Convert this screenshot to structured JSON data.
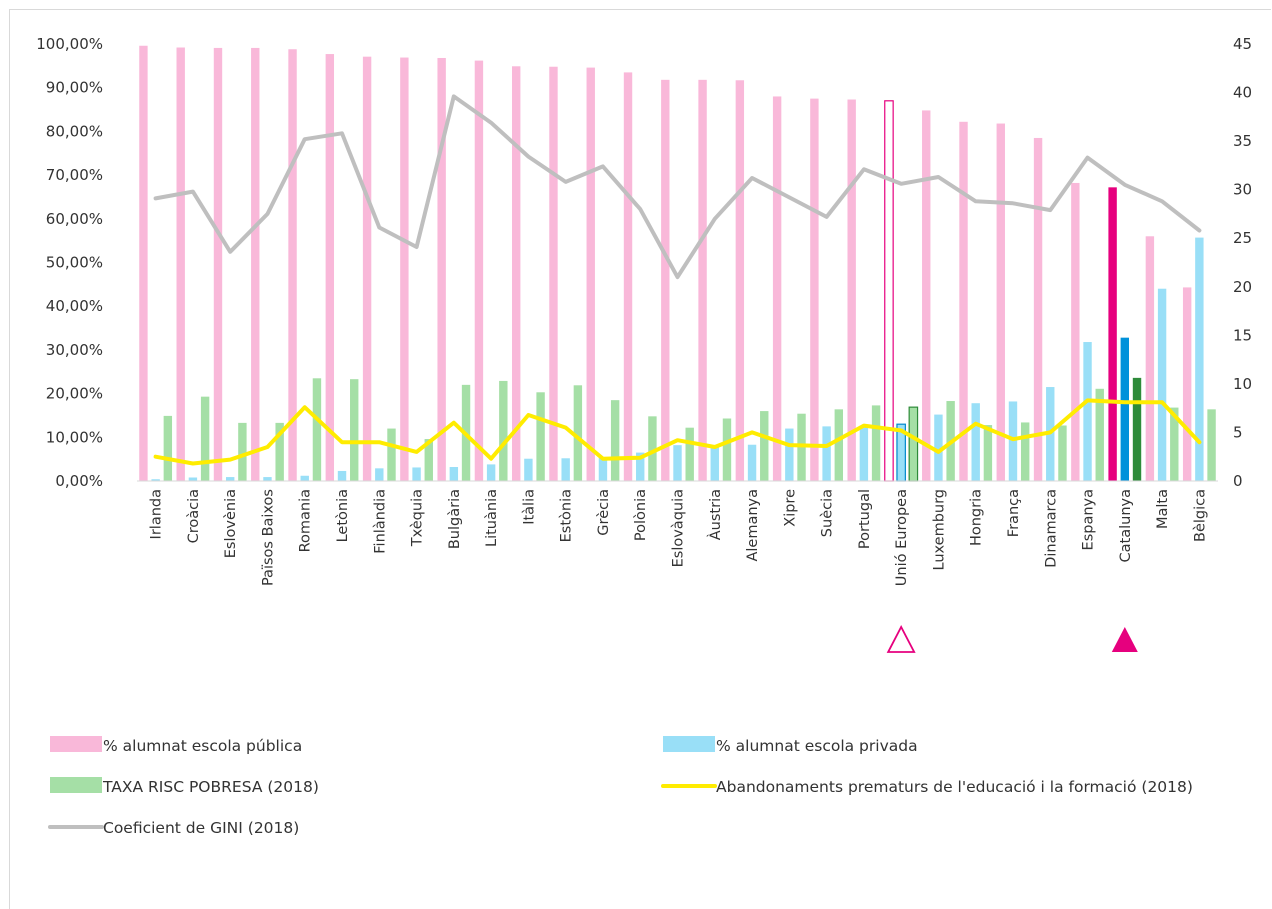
{
  "chart_data": {
    "type": "bar",
    "categories": [
      "Irlanda",
      "Croàcia",
      "Eslovènia",
      "Països Baixos",
      "Romania",
      "Letònia",
      "Finlàndia",
      "Txèquia",
      "Bulgària",
      "Lituània",
      "Itàlia",
      "Estònia",
      "Grècia",
      "Polònia",
      "Eslovàquia",
      "Àustria",
      "Alemanya",
      "Xipre",
      "Suècia",
      "Portugal",
      "Unió Europea",
      "Luxemburg",
      "Hongria",
      "França",
      "Dinamarca",
      "Espanya",
      "Catalunya",
      "Malta",
      "Bèlgica"
    ],
    "series": [
      {
        "name": "% alumnat escola pública",
        "type": "bar",
        "axis": "left",
        "color": "#f9b8d9",
        "values": [
          99.6,
          99.2,
          99.1,
          99.1,
          98.8,
          97.7,
          97.1,
          96.9,
          96.8,
          96.2,
          94.9,
          94.8,
          94.6,
          93.5,
          91.8,
          91.8,
          91.7,
          88.0,
          87.5,
          87.3,
          87.0,
          84.8,
          82.2,
          81.8,
          78.5,
          68.2,
          67.2,
          56.0,
          44.3
        ]
      },
      {
        "name": "% alumnat escola privada",
        "type": "bar",
        "axis": "left",
        "color": "#99dff7",
        "values": [
          0.4,
          0.8,
          0.9,
          0.9,
          1.2,
          2.3,
          2.9,
          3.1,
          3.2,
          3.8,
          5.1,
          5.2,
          5.4,
          6.5,
          8.2,
          8.2,
          8.3,
          12.0,
          12.5,
          12.7,
          13.0,
          15.2,
          17.8,
          18.2,
          21.5,
          31.8,
          32.8,
          44.0,
          55.7
        ]
      },
      {
        "name": "TAXA RISC POBRESA (2018)",
        "type": "bar",
        "axis": "left",
        "color": "#a5dfa6",
        "values": [
          14.9,
          19.3,
          13.3,
          13.3,
          23.5,
          23.3,
          12.0,
          9.6,
          22.0,
          22.9,
          20.3,
          21.9,
          18.5,
          14.8,
          12.2,
          14.3,
          16.0,
          15.4,
          16.4,
          17.3,
          16.9,
          18.3,
          12.8,
          13.4,
          12.7,
          21.1,
          23.6,
          16.8,
          16.4
        ]
      },
      {
        "name": "Abandonaments prematurs de l'educació i la formació (2018)",
        "type": "line",
        "axis": "right",
        "color": "#ffec00",
        "values": [
          2.5,
          1.8,
          2.2,
          3.5,
          7.6,
          4.0,
          4.0,
          3.0,
          6.0,
          2.3,
          6.8,
          5.5,
          2.3,
          2.4,
          4.2,
          3.5,
          5.0,
          3.7,
          3.6,
          5.7,
          5.2,
          3.0,
          5.9,
          4.3,
          5.0,
          8.3,
          8.1,
          8.1,
          4.0
        ]
      },
      {
        "name": "Coeficient de GINI (2018)",
        "type": "line",
        "axis": "right",
        "color": "#bfbfbf",
        "values": [
          29.1,
          29.8,
          23.6,
          27.5,
          35.2,
          35.8,
          26.1,
          24.1,
          39.6,
          36.9,
          33.4,
          30.8,
          32.4,
          28.0,
          21.0,
          27.0,
          31.2,
          29.2,
          27.2,
          32.1,
          30.6,
          31.3,
          28.8,
          28.6,
          27.9,
          33.3,
          30.5,
          28.8,
          25.8
        ]
      }
    ],
    "highlights": [
      {
        "category": "Unió Europea",
        "style": "outlined",
        "marker": "triangle-outline",
        "marker_color": "#e6007e",
        "colors": {
          "public": "#ffffff",
          "public_stroke": "#e6007e",
          "private": "#99dff7",
          "private_stroke": "#0088cc",
          "poverty": "#a5dfa6",
          "poverty_stroke": "#2e8b3a"
        }
      },
      {
        "category": "Catalunya",
        "style": "filled",
        "marker": "triangle-filled",
        "marker_color": "#e6007e",
        "colors": {
          "public": "#e6007e",
          "private": "#0091da",
          "poverty": "#2e8b3a"
        }
      }
    ],
    "y_left": {
      "ticks": [
        "0,00%",
        "10,00%",
        "20,00%",
        "30,00%",
        "40,00%",
        "50,00%",
        "60,00%",
        "70,00%",
        "80,00%",
        "90,00%",
        "100,00%"
      ],
      "min": 0,
      "max": 100
    },
    "y_right": {
      "ticks": [
        "0",
        "5",
        "10",
        "15",
        "20",
        "25",
        "30",
        "35",
        "40",
        "45"
      ],
      "min": 0,
      "max": 45
    },
    "grid": false,
    "legend_position": "bottom"
  }
}
